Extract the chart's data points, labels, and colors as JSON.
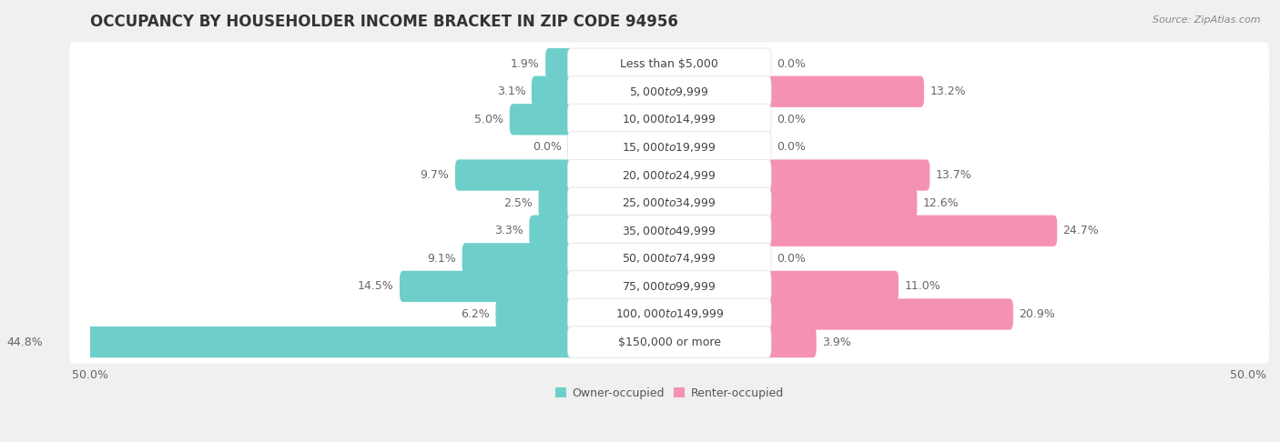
{
  "title": "OCCUPANCY BY HOUSEHOLDER INCOME BRACKET IN ZIP CODE 94956",
  "source": "Source: ZipAtlas.com",
  "categories": [
    "Less than $5,000",
    "$5,000 to $9,999",
    "$10,000 to $14,999",
    "$15,000 to $19,999",
    "$20,000 to $24,999",
    "$25,000 to $34,999",
    "$35,000 to $49,999",
    "$50,000 to $74,999",
    "$75,000 to $99,999",
    "$100,000 to $149,999",
    "$150,000 or more"
  ],
  "owner_values": [
    1.9,
    3.1,
    5.0,
    0.0,
    9.7,
    2.5,
    3.3,
    9.1,
    14.5,
    6.2,
    44.8
  ],
  "renter_values": [
    0.0,
    13.2,
    0.0,
    0.0,
    13.7,
    12.6,
    24.7,
    0.0,
    11.0,
    20.9,
    3.9
  ],
  "owner_color": "#6ECFCA",
  "renter_color": "#F591B2",
  "background_color": "#f0f0f0",
  "row_background": "#ffffff",
  "axis_limit": 50.0,
  "bar_height": 0.52,
  "title_fontsize": 12,
  "label_fontsize": 9,
  "category_fontsize": 9,
  "legend_fontsize": 9,
  "source_fontsize": 8
}
